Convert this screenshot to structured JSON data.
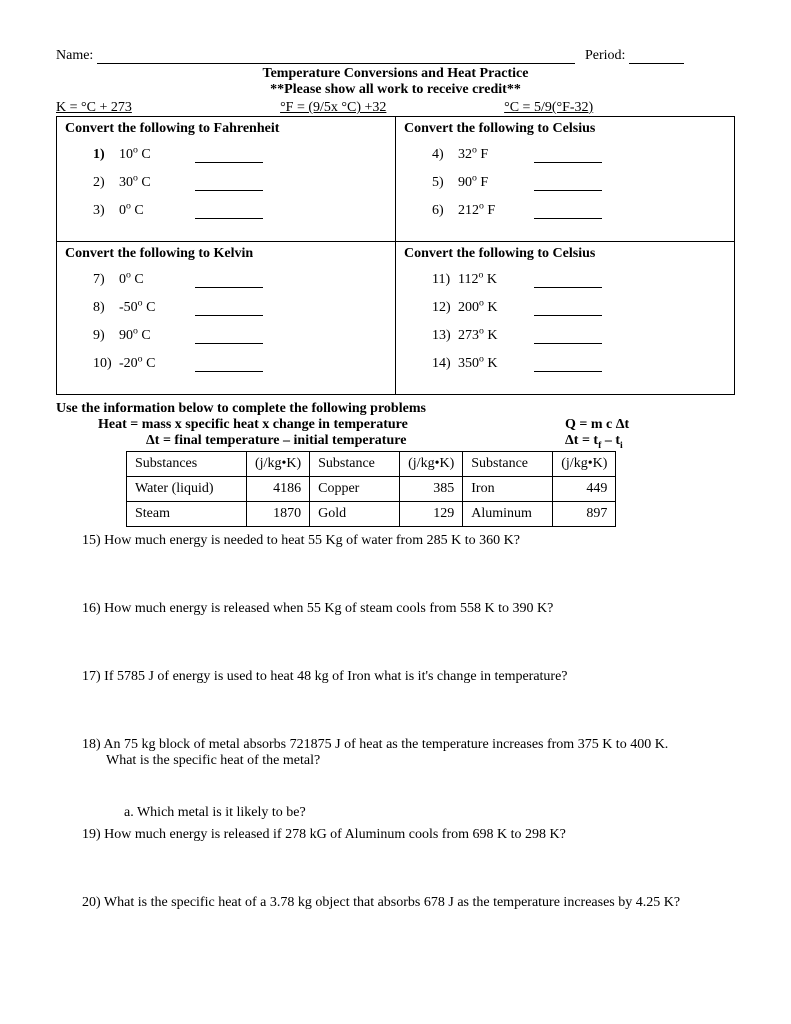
{
  "header": {
    "name_label": "Name:",
    "period_label": "Period:"
  },
  "title": {
    "line1": "Temperature Conversions and Heat Practice",
    "line2": "**Please show all work to receive credit**"
  },
  "formulas": {
    "k": "K = °C + 273",
    "f": "°F = (9/5x °C) +32",
    "c": "°C = 5/9(°F-32)"
  },
  "quad": {
    "tl": {
      "head": "Convert the following to Fahrenheit",
      "items": [
        {
          "n": "1)",
          "v": "10",
          "u": "C",
          "bold": true
        },
        {
          "n": "2)",
          "v": "30",
          "u": "C"
        },
        {
          "n": "3)",
          "v": "0",
          "u": "C"
        }
      ]
    },
    "tr": {
      "head": "Convert the following to Celsius",
      "items": [
        {
          "n": "4)",
          "v": "32",
          "u": "F"
        },
        {
          "n": "5)",
          "v": "90",
          "u": "F"
        },
        {
          "n": "6)",
          "v": "212",
          "u": "F"
        }
      ]
    },
    "bl": {
      "head": "Convert the following to Kelvin",
      "items": [
        {
          "n": "7)",
          "v": "0",
          "u": "C"
        },
        {
          "n": "8)",
          "v": "-50",
          "u": "C"
        },
        {
          "n": "9)",
          "v": "90",
          "u": "C"
        },
        {
          "n": "10)",
          "v": "-20",
          "u": "C"
        }
      ]
    },
    "br": {
      "head": "Convert the following to Celsius",
      "items": [
        {
          "n": "11)",
          "v": "112",
          "u": "K"
        },
        {
          "n": "12)",
          "v": "200",
          "u": "K"
        },
        {
          "n": "13)",
          "v": "273",
          "u": "K"
        },
        {
          "n": "14)",
          "v": "350",
          "u": "K"
        }
      ]
    }
  },
  "heat_section": {
    "intro": "Use the information below to complete the following problems",
    "eq1_left": "Heat = mass x specific heat x change in temperature",
    "eq1_right": "Q = m c Δt",
    "eq2_left": "Δt = final temperature – initial temperature",
    "eq2_right_pre": "Δt = t",
    "eq2_right_mid": " – t",
    "eq2_sub_f": "f",
    "eq2_sub_i": "i"
  },
  "sh_table": {
    "h_sub": "Substances",
    "h_subB": "Substance",
    "h_subC": "Substance",
    "h_unit": "(j/kg•K)",
    "r1": {
      "a": "Water (liquid)",
      "av": "4186",
      "b": "Copper",
      "bv": "385",
      "c": "Iron",
      "cv": "449"
    },
    "r2": {
      "a": "Steam",
      "av": "1870",
      "b": "Gold",
      "bv": "129",
      "c": "Aluminum",
      "cv": "897"
    }
  },
  "problems": {
    "p15": "15) How much energy is needed to heat  55 Kg of water from 285 K to 360 K?",
    "p16": "16) How much energy is released when 55 Kg of steam cools from 558 K to 390 K?",
    "p17": "17) If 5785 J of energy is used to heat 48 kg of Iron what is it's change in temperature?",
    "p18": "18) An 75 kg block of metal absorbs 721875 J of heat as the temperature increases from 375 K to 400 K.",
    "p18b": "What is the specific heat of the metal?",
    "p18a": "a.    Which metal is it likely to be?",
    "p19": "19) How much energy is released if 278 kG of Aluminum cools from 698 K to 298 K?",
    "p20": "20) What is the specific heat of a 3.78 kg object that absorbs 678 J as the temperature increases by 4.25 K?"
  }
}
